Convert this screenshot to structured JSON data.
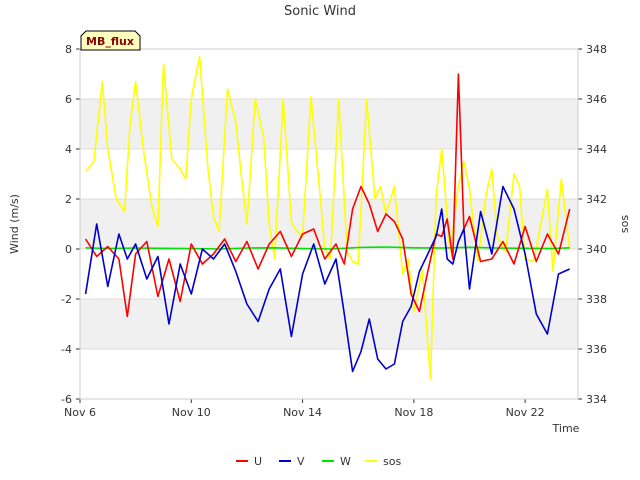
{
  "chart_data": {
    "type": "line",
    "title": "Sonic Wind",
    "xlabel": "Time",
    "ylabel_left": "Wind (m/s)",
    "ylabel_right": "sos",
    "badge": "MB_flux",
    "x_tick_labels": [
      "Nov 6",
      "Nov 10",
      "Nov 14",
      "Nov 18",
      "Nov 22"
    ],
    "x_ticks_days": [
      6,
      10,
      14,
      18,
      22
    ],
    "xlim": [
      6,
      23.9
    ],
    "ylim_left": [
      -6,
      8
    ],
    "ylim_right": [
      334,
      348
    ],
    "y_ticks_left": [
      "-6",
      "-4",
      "-2",
      "0",
      "2",
      "4",
      "6",
      "8"
    ],
    "y_ticks_right": [
      "334",
      "336",
      "338",
      "340",
      "342",
      "344",
      "346",
      "348"
    ],
    "series": [
      {
        "name": "U",
        "color": "#ff0000",
        "axis": "left",
        "x": [
          6.2,
          6.6,
          7.0,
          7.4,
          7.7,
          8.0,
          8.4,
          8.8,
          9.2,
          9.6,
          10.0,
          10.4,
          10.8,
          11.2,
          11.6,
          12.0,
          12.4,
          12.8,
          13.2,
          13.6,
          14.0,
          14.4,
          14.8,
          15.2,
          15.5,
          15.8,
          16.1,
          16.4,
          16.7,
          17.0,
          17.3,
          17.6,
          17.9,
          18.2,
          18.5,
          18.8,
          19.0,
          19.2,
          19.4,
          19.6,
          19.8,
          20.0,
          20.4,
          20.8,
          21.2,
          21.6,
          22.0,
          22.4,
          22.8,
          23.2,
          23.6
        ],
        "y": [
          0.4,
          -0.3,
          0.1,
          -0.4,
          -2.7,
          -0.2,
          0.3,
          -1.9,
          -0.4,
          -2.1,
          0.2,
          -0.6,
          -0.2,
          0.4,
          -0.5,
          0.3,
          -0.8,
          0.2,
          0.7,
          -0.3,
          0.6,
          0.8,
          -0.4,
          0.2,
          -0.6,
          1.6,
          2.5,
          1.8,
          0.7,
          1.4,
          1.1,
          0.4,
          -1.8,
          -2.5,
          -0.9,
          0.6,
          0.5,
          1.2,
          -0.4,
          7.0,
          0.8,
          1.3,
          -0.5,
          -0.4,
          0.3,
          -0.6,
          0.9,
          -0.5,
          0.6,
          -0.2,
          1.6
        ]
      },
      {
        "name": "V",
        "color": "#0000cc",
        "axis": "left",
        "x": [
          6.2,
          6.6,
          7.0,
          7.4,
          7.7,
          8.0,
          8.4,
          8.8,
          9.2,
          9.6,
          10.0,
          10.4,
          10.8,
          11.2,
          11.6,
          12.0,
          12.4,
          12.8,
          13.2,
          13.6,
          14.0,
          14.4,
          14.8,
          15.2,
          15.5,
          15.8,
          16.1,
          16.4,
          16.7,
          17.0,
          17.3,
          17.6,
          17.9,
          18.2,
          18.5,
          18.8,
          19.0,
          19.2,
          19.4,
          19.6,
          19.8,
          20.0,
          20.4,
          20.8,
          21.2,
          21.6,
          22.0,
          22.4,
          22.8,
          23.2,
          23.6
        ],
        "y": [
          -1.8,
          1.0,
          -1.5,
          0.6,
          -0.4,
          0.2,
          -1.2,
          -0.3,
          -3.0,
          -0.6,
          -1.8,
          0.0,
          -0.4,
          0.2,
          -0.9,
          -2.2,
          -2.9,
          -1.6,
          -0.8,
          -3.5,
          -1.0,
          0.2,
          -1.4,
          -0.4,
          -2.6,
          -4.9,
          -4.1,
          -2.8,
          -4.4,
          -4.8,
          -4.6,
          -2.9,
          -2.3,
          -0.9,
          -0.2,
          0.5,
          1.6,
          -0.4,
          -0.6,
          0.3,
          0.8,
          -1.6,
          1.5,
          -0.2,
          2.5,
          1.6,
          -0.2,
          -2.6,
          -3.4,
          -1.0,
          -0.8
        ]
      },
      {
        "name": "W",
        "color": "#00e000",
        "axis": "left",
        "x": [
          6.2,
          7.0,
          8.0,
          9.0,
          10.0,
          11.0,
          12.0,
          13.0,
          14.0,
          15.0,
          16.0,
          17.0,
          18.0,
          19.0,
          20.0,
          21.0,
          22.0,
          23.0,
          23.6
        ],
        "y": [
          0.05,
          0.02,
          0.04,
          0.03,
          0.02,
          0.0,
          0.04,
          0.05,
          0.02,
          0.0,
          0.06,
          0.08,
          0.05,
          0.04,
          0.07,
          0.04,
          0.03,
          0.02,
          0.05
        ]
      },
      {
        "name": "sos",
        "color": "#ffff00",
        "axis": "right",
        "x": [
          6.2,
          6.5,
          6.8,
          7.0,
          7.3,
          7.6,
          7.8,
          8.0,
          8.3,
          8.6,
          8.8,
          9.0,
          9.3,
          9.6,
          9.8,
          10.0,
          10.3,
          10.6,
          10.8,
          11.0,
          11.3,
          11.6,
          11.8,
          12.0,
          12.3,
          12.6,
          12.8,
          13.0,
          13.3,
          13.6,
          13.8,
          14.0,
          14.3,
          14.6,
          14.8,
          15.0,
          15.3,
          15.6,
          15.8,
          16.0,
          16.3,
          16.6,
          16.8,
          17.0,
          17.3,
          17.6,
          17.8,
          18.0,
          18.3,
          18.6,
          18.8,
          19.0,
          19.3,
          19.6,
          19.8,
          20.0,
          20.3,
          20.6,
          20.8,
          21.0,
          21.3,
          21.6,
          21.8,
          22.0,
          22.3,
          22.6,
          22.8,
          23.0,
          23.3,
          23.6
        ],
        "y": [
          343.1,
          343.5,
          346.7,
          344.0,
          342.0,
          341.5,
          345.0,
          346.7,
          343.8,
          341.6,
          340.9,
          347.4,
          343.6,
          343.2,
          342.8,
          346.0,
          347.7,
          343.2,
          341.3,
          340.7,
          346.4,
          345.1,
          342.9,
          341.0,
          346.0,
          344.5,
          341.0,
          339.6,
          346.0,
          341.1,
          340.7,
          340.5,
          346.1,
          342.5,
          340.0,
          339.6,
          346.0,
          339.9,
          339.5,
          339.4,
          346.0,
          342.0,
          342.5,
          341.4,
          342.5,
          339.0,
          339.6,
          337.5,
          339.2,
          334.8,
          342.1,
          344.0,
          339.9,
          342.5,
          343.5,
          342.4,
          339.5,
          342.2,
          343.2,
          340.5,
          339.9,
          343.0,
          342.5,
          339.6,
          339.5,
          341.2,
          342.4,
          339.1,
          342.8,
          340.0
        ]
      }
    ]
  }
}
